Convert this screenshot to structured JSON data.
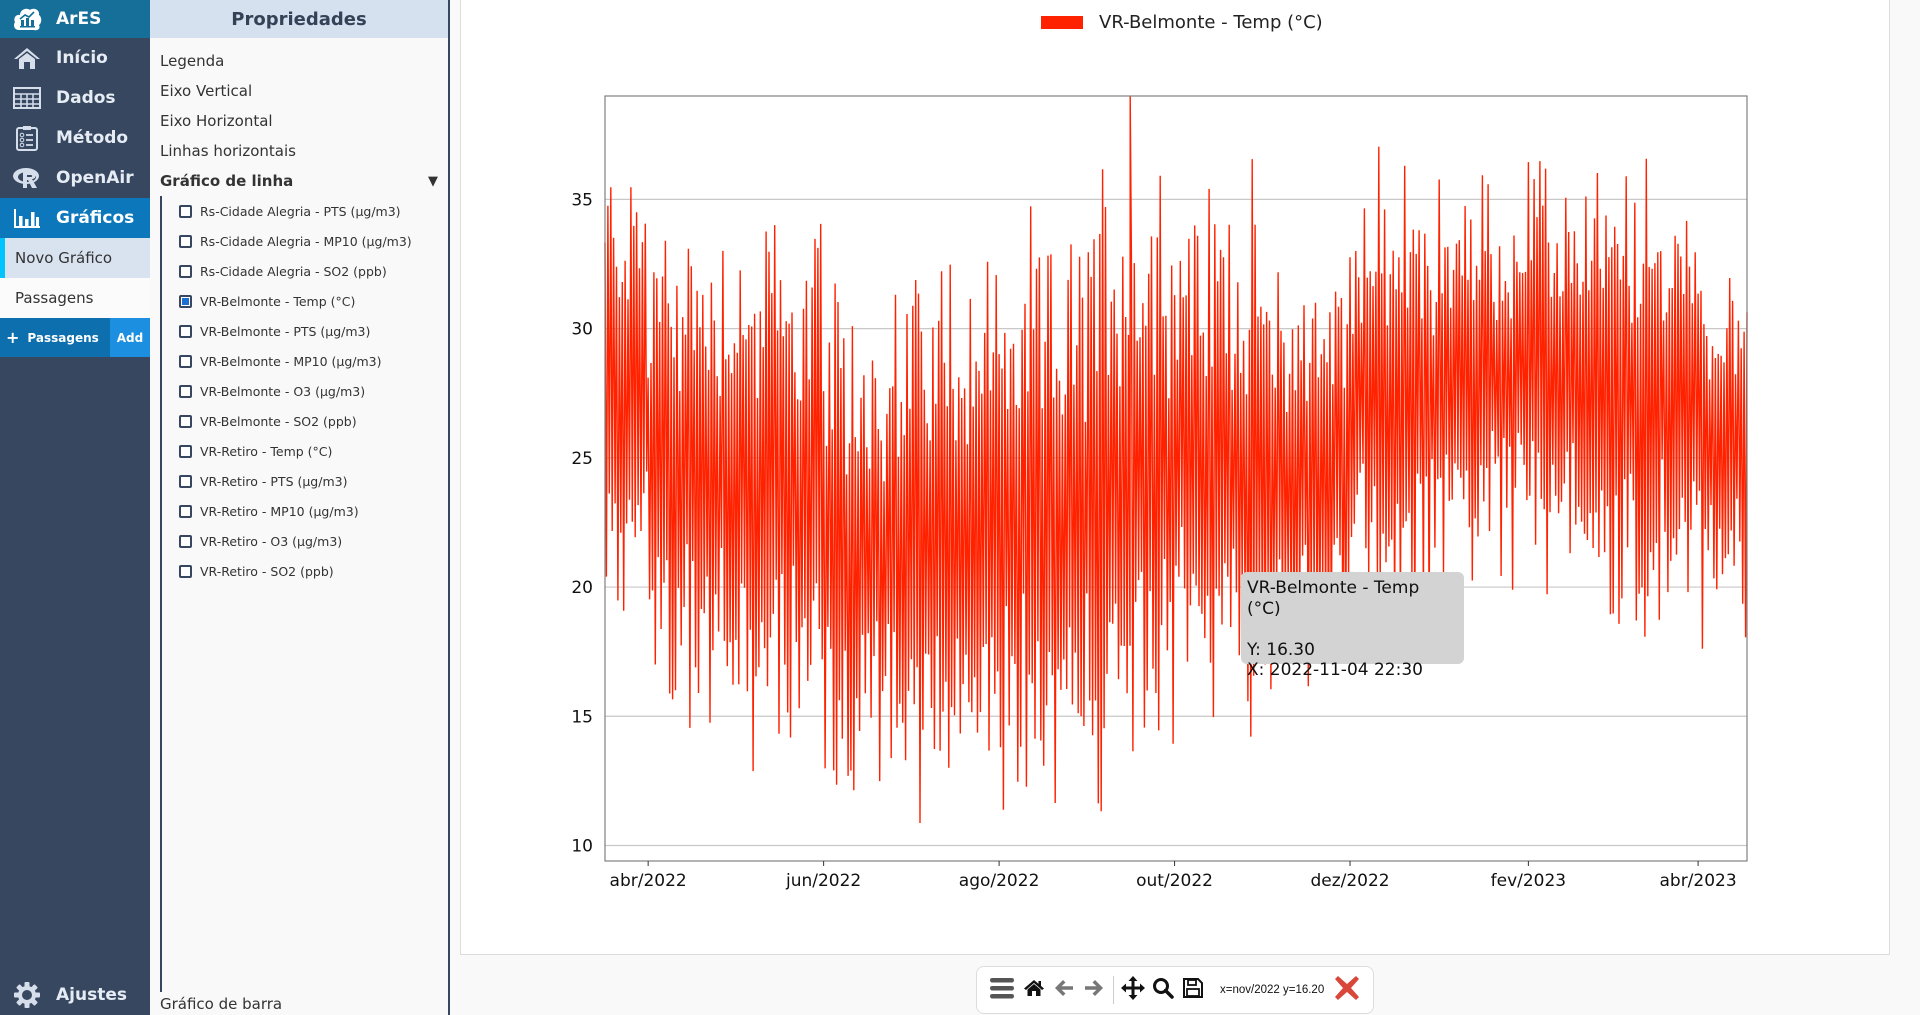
{
  "app": {
    "name": "ArES"
  },
  "nav": {
    "items": [
      {
        "label": "Início",
        "icon": "home-icon"
      },
      {
        "label": "Dados",
        "icon": "table-icon"
      },
      {
        "label": "Método",
        "icon": "clipboard-list-icon"
      },
      {
        "label": "OpenAir",
        "icon": "r-logo-icon"
      },
      {
        "label": "Gráficos",
        "icon": "bar-chart-icon",
        "active": true
      }
    ],
    "sub_items": [
      {
        "label": "Novo Gráfico",
        "selected": true
      },
      {
        "label": "Passagens",
        "selected": false
      }
    ],
    "add_bar": {
      "label": "Passagens",
      "plus": "+",
      "button": "Add"
    },
    "settings": {
      "label": "Ajustes",
      "icon": "gear-icon"
    },
    "colors": {
      "brand": "#166f98",
      "nav_bg": "#374760",
      "active": "#0d77bc",
      "selected_accent": "#00c3ff"
    }
  },
  "properties": {
    "title": "Propriedades",
    "links": [
      "Legenda",
      "Eixo Vertical",
      "Eixo Horizontal",
      "Linhas horizontais"
    ],
    "section": {
      "label": "Gráfico de linha",
      "toggle": "▼"
    },
    "series": [
      {
        "label": "Rs-Cidade Alegria - PTS (µg/m3)",
        "checked": false
      },
      {
        "label": "Rs-Cidade Alegria - MP10 (µg/m3)",
        "checked": false
      },
      {
        "label": "Rs-Cidade Alegria - SO2 (ppb)",
        "checked": false
      },
      {
        "label": "VR-Belmonte - Temp (°C)",
        "checked": true
      },
      {
        "label": "VR-Belmonte - PTS (µg/m3)",
        "checked": false
      },
      {
        "label": "VR-Belmonte - MP10 (µg/m3)",
        "checked": false
      },
      {
        "label": "VR-Belmonte - O3 (µg/m3)",
        "checked": false
      },
      {
        "label": "VR-Belmonte - SO2 (ppb)",
        "checked": false
      },
      {
        "label": "VR-Retiro - Temp (°C)",
        "checked": false
      },
      {
        "label": "VR-Retiro - PTS (µg/m3)",
        "checked": false
      },
      {
        "label": "VR-Retiro - MP10 (µg/m3)",
        "checked": false
      },
      {
        "label": "VR-Retiro - O3 (µg/m3)",
        "checked": false
      },
      {
        "label": "VR-Retiro - SO2 (ppb)",
        "checked": false
      }
    ],
    "bottom_section": "Gráfico de barra"
  },
  "chart_data": {
    "type": "line",
    "title": "",
    "legend": {
      "entries": [
        "VR-Belmonte - Temp (°C)"
      ],
      "position": "top-center"
    },
    "series": [
      {
        "name": "VR-Belmonte - Temp (°C)",
        "color": "#ff2200",
        "x_start": "2022-03-17",
        "x_end": "2023-04-18",
        "sampling": "half-hourly (dense, diurnal oscillation)",
        "y_min_observed": 9.4,
        "y_max_observed": 39.0,
        "monthly_envelope": [
          {
            "month": "2022-03",
            "low": 18,
            "high": 38
          },
          {
            "month": "2022-04",
            "low": 13,
            "high": 36
          },
          {
            "month": "2022-05",
            "low": 12,
            "high": 36
          },
          {
            "month": "2022-06",
            "low": 9.5,
            "high": 33
          },
          {
            "month": "2022-07",
            "low": 10,
            "high": 35
          },
          {
            "month": "2022-08",
            "low": 10.5,
            "high": 35
          },
          {
            "month": "2022-09",
            "low": 9.5,
            "high": 39
          },
          {
            "month": "2022-10",
            "low": 13,
            "high": 37
          },
          {
            "month": "2022-11",
            "low": 15,
            "high": 34
          },
          {
            "month": "2022-12",
            "low": 17,
            "high": 37.5
          },
          {
            "month": "2023-01",
            "low": 19,
            "high": 37
          },
          {
            "month": "2023-02",
            "low": 18.5,
            "high": 37.5
          },
          {
            "month": "2023-03",
            "low": 16.5,
            "high": 37.5
          },
          {
            "month": "2023-04",
            "low": 17,
            "high": 34.5
          }
        ]
      }
    ],
    "xlabel": "",
    "ylabel": "",
    "x_ticks": [
      "abr/2022",
      "jun/2022",
      "ago/2022",
      "out/2022",
      "dez/2022",
      "fev/2023",
      "abr/2023"
    ],
    "y_ticks": [
      10,
      15,
      20,
      25,
      30,
      35
    ],
    "ylim": [
      9.4,
      39.0
    ],
    "grid": {
      "horizontal": true,
      "vertical": false
    },
    "tooltip": {
      "title": "VR-Belmonte - Temp (°C)",
      "y_label": "Y: 16.30",
      "x_label": "X: 2022-11-04 22:30"
    }
  },
  "toolbar": {
    "buttons": [
      "menu",
      "home",
      "back",
      "forward",
      "pan",
      "zoom",
      "save"
    ],
    "coords": "x=nov/2022 y=16.20",
    "close_color": "#d9463a"
  }
}
